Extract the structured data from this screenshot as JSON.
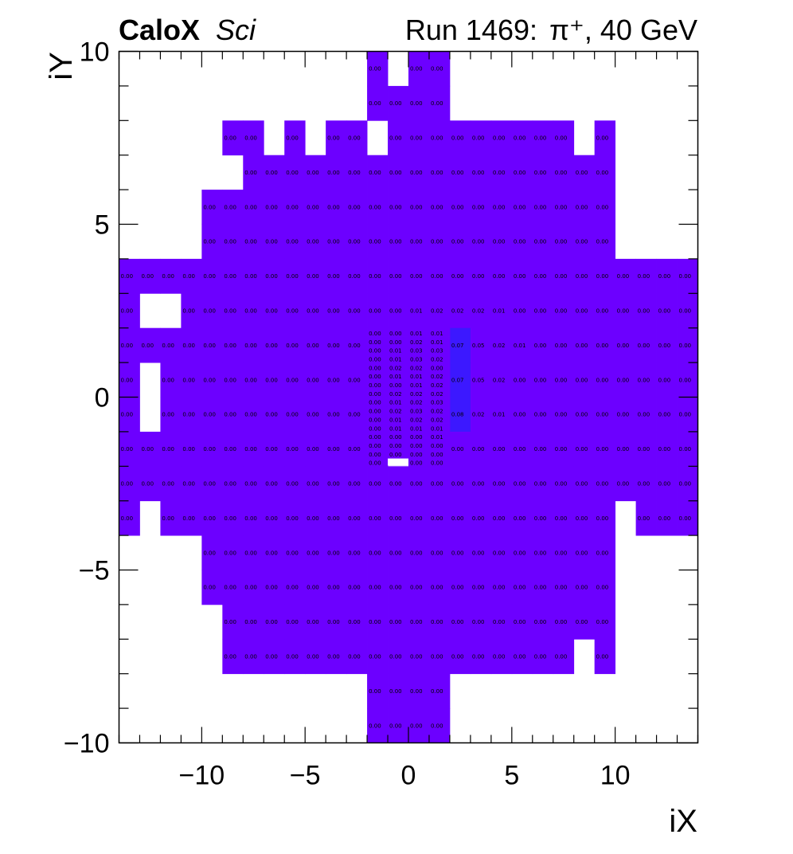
{
  "header": {
    "brand_bold": "CaloX",
    "brand_italic": "Sci",
    "run_label": "Run 1469:",
    "particle": "π⁺, 40 GeV"
  },
  "chart_data": {
    "type": "heatmap",
    "xlabel": "iX",
    "ylabel": "iY",
    "xlim": [
      -14,
      14
    ],
    "ylim": [
      -10,
      10
    ],
    "xticks": [
      -10,
      -5,
      0,
      5,
      10
    ],
    "yticks": [
      -10,
      -5,
      0,
      5,
      10
    ],
    "xtick_labels": [
      "−10",
      "−5",
      "0",
      "5",
      "10"
    ],
    "ytick_labels": [
      "−10",
      "−5",
      "0",
      "5",
      "10"
    ],
    "colors": {
      "base": "#6c00ff",
      "hot": "#3c18ff",
      "label": "#000000"
    },
    "coarse_cells": {
      "rows": [
        {
          "y0": 9,
          "y1": 10,
          "x_ranges": [
            [
              -2,
              -1
            ],
            [
              0,
              2
            ]
          ]
        },
        {
          "y0": 8,
          "y1": 9,
          "x_ranges": [
            [
              -2,
              2
            ]
          ]
        },
        {
          "y0": 7,
          "y1": 8,
          "x_ranges": [
            [
              -9,
              -7
            ],
            [
              -6,
              -5
            ],
            [
              -4,
              -2
            ],
            [
              -1,
              8
            ],
            [
              9,
              10
            ]
          ]
        },
        {
          "y0": 6,
          "y1": 7,
          "x_ranges": [
            [
              -8,
              10
            ]
          ]
        },
        {
          "y0": 5,
          "y1": 6,
          "x_ranges": [
            [
              -10,
              10
            ]
          ]
        },
        {
          "y0": 4,
          "y1": 5,
          "x_ranges": [
            [
              -10,
              10
            ]
          ]
        },
        {
          "y0": 3,
          "y1": 4,
          "x_ranges": [
            [
              -14,
              14
            ]
          ]
        },
        {
          "y0": 2,
          "y1": 3,
          "x_ranges": [
            [
              -14,
              -13
            ],
            [
              -11,
              14
            ]
          ]
        },
        {
          "y0": 1,
          "y1": 2,
          "x_ranges": [
            [
              -14,
              -2
            ],
            [
              2,
              14
            ]
          ]
        },
        {
          "y0": 0,
          "y1": 1,
          "x_ranges": [
            [
              -14,
              -13
            ],
            [
              -12,
              -2
            ],
            [
              2,
              14
            ]
          ]
        },
        {
          "y0": -1,
          "y1": 0,
          "x_ranges": [
            [
              -14,
              -13
            ],
            [
              -12,
              -2
            ],
            [
              2,
              14
            ]
          ]
        },
        {
          "y0": -2,
          "y1": -1,
          "x_ranges": [
            [
              -14,
              -2
            ],
            [
              2,
              14
            ]
          ]
        },
        {
          "y0": -3,
          "y1": -2,
          "x_ranges": [
            [
              -14,
              14
            ]
          ]
        },
        {
          "y0": -4,
          "y1": -3,
          "x_ranges": [
            [
              -14,
              -13
            ],
            [
              -12,
              10
            ],
            [
              11,
              14
            ]
          ]
        },
        {
          "y0": -5,
          "y1": -4,
          "x_ranges": [
            [
              -10,
              10
            ]
          ]
        },
        {
          "y0": -6,
          "y1": -5,
          "x_ranges": [
            [
              -10,
              10
            ]
          ]
        },
        {
          "y0": -7,
          "y1": -6,
          "x_ranges": [
            [
              -9,
              10
            ]
          ]
        },
        {
          "y0": -8,
          "y1": -7,
          "x_ranges": [
            [
              -9,
              8
            ],
            [
              9,
              10
            ]
          ]
        },
        {
          "y0": -9,
          "y1": -8,
          "x_ranges": [
            [
              -2,
              2
            ]
          ]
        },
        {
          "y0": -10,
          "y1": -9,
          "x_ranges": [
            [
              -2,
              2
            ]
          ]
        }
      ],
      "nonzero_values": [
        {
          "x": -1,
          "y": 2,
          "v": "0.00"
        },
        {
          "x": 0,
          "y": 2,
          "v": "0.01"
        },
        {
          "x": 1,
          "y": 2,
          "v": "0.02"
        },
        {
          "x": 2,
          "y": 2,
          "v": "0.02"
        },
        {
          "x": 3,
          "y": 2,
          "v": "0.02"
        },
        {
          "x": 4,
          "y": 2,
          "v": "0.01"
        },
        {
          "x": 2,
          "y": 1,
          "v": "0.07"
        },
        {
          "x": 3,
          "y": 1,
          "v": "0.05"
        },
        {
          "x": 4,
          "y": 1,
          "v": "0.02"
        },
        {
          "x": 5,
          "y": 1,
          "v": "0.01"
        },
        {
          "x": 2,
          "y": 0,
          "v": "0.07"
        },
        {
          "x": 3,
          "y": 0,
          "v": "0.05"
        },
        {
          "x": 4,
          "y": 0,
          "v": "0.02"
        },
        {
          "x": 2,
          "y": -1,
          "v": "0.08"
        },
        {
          "x": 3,
          "y": -1,
          "v": "0.02"
        },
        {
          "x": 4,
          "y": -1,
          "v": "0.01"
        }
      ],
      "default_value": "0.00"
    },
    "fine_region": {
      "x0": -2,
      "x1": 2,
      "y0": -2,
      "y1": 2,
      "cols": 4,
      "rows": 16,
      "hole": {
        "col": 1,
        "row": 15
      },
      "values": [
        [
          "0.00",
          "0.00",
          "0.01",
          "0.01"
        ],
        [
          "0.00",
          "0.00",
          "0.02",
          "0.01"
        ],
        [
          "0.00",
          "0.01",
          "0.03",
          "0.03"
        ],
        [
          "0.00",
          "0.01",
          "0.03",
          "0.02"
        ],
        [
          "0.00",
          "0.02",
          "0.02",
          "0.00"
        ],
        [
          "0.00",
          "0.01",
          "0.01",
          "0.02"
        ],
        [
          "0.00",
          "0.00",
          "0.01",
          "0.02"
        ],
        [
          "0.00",
          "0.02",
          "0.02",
          "0.02"
        ],
        [
          "0.00",
          "0.01",
          "0.02",
          "0.03"
        ],
        [
          "0.00",
          "0.02",
          "0.03",
          "0.02"
        ],
        [
          "0.00",
          "0.01",
          "0.02",
          "0.02"
        ],
        [
          "0.00",
          "0.01",
          "0.01",
          "0.01"
        ],
        [
          "0.00",
          "0.00",
          "0.00",
          "0.01"
        ],
        [
          "0.00",
          "0.00",
          "0.00",
          "0.00"
        ],
        [
          "0.00",
          "0.00",
          "0.00",
          "0.00"
        ],
        [
          "0.00",
          "",
          "0.00",
          "0.00"
        ]
      ]
    },
    "hot_strip": {
      "x0": 2,
      "x1": 3,
      "y0": -1,
      "y1": 2
    }
  }
}
